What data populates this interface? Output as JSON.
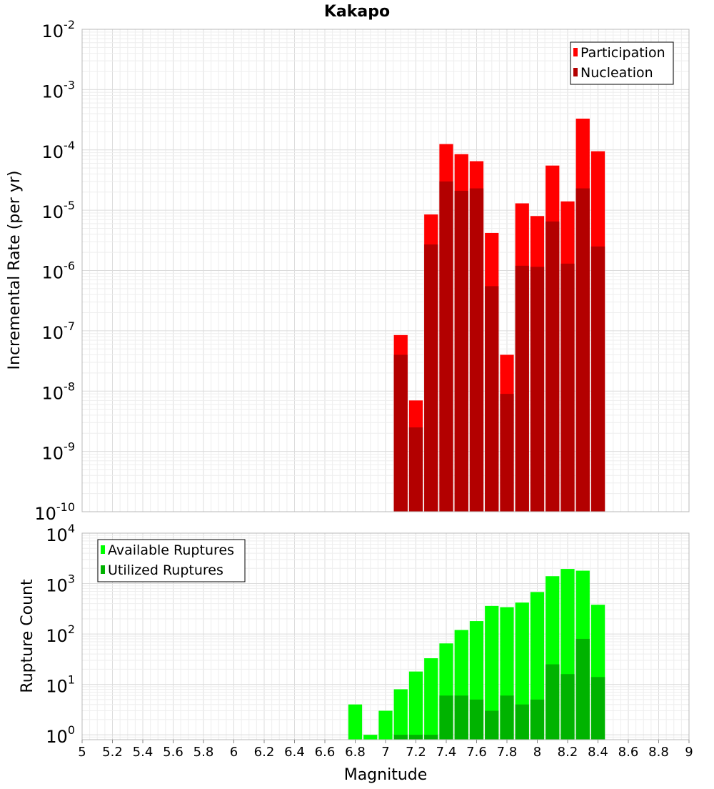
{
  "chart_data": [
    {
      "type": "bar",
      "title": "Kakapo",
      "xlabel": "",
      "ylabel": "Incremental Rate (per yr)",
      "yscale": "log",
      "ylim": [
        1e-10,
        0.01
      ],
      "xlim": [
        5,
        9
      ],
      "y_tick_exponents": [
        "-10",
        "-9",
        "-8",
        "-7",
        "-6",
        "-5",
        "-4",
        "-3",
        "-2"
      ],
      "y_tick_base": "10",
      "grid": true,
      "legend": "top-right",
      "x": [
        7.1,
        7.2,
        7.3,
        7.4,
        7.5,
        7.6,
        7.7,
        7.8,
        7.9,
        8.0,
        8.1,
        8.2,
        8.3,
        8.4
      ],
      "series": [
        {
          "name": "Participation",
          "color": "#ff0000",
          "values": [
            8.5e-08,
            7e-09,
            8.5e-06,
            0.000125,
            8.5e-05,
            6.5e-05,
            4.2e-06,
            4e-08,
            1.3e-05,
            8e-06,
            5.5e-05,
            1.4e-05,
            0.00033,
            9.5e-05
          ]
        },
        {
          "name": "Nucleation",
          "color": "#b30000",
          "values": [
            4e-08,
            2.5e-09,
            2.7e-06,
            3e-05,
            2.1e-05,
            2.3e-05,
            5.5e-07,
            9e-09,
            1.2e-06,
            1.15e-06,
            6.5e-06,
            1.3e-06,
            2.3e-05,
            2.5e-06
          ]
        }
      ]
    },
    {
      "type": "bar",
      "title": "",
      "xlabel": "Magnitude",
      "ylabel": "Rupture Count",
      "yscale": "log",
      "ylim": [
        0.8,
        10000
      ],
      "xlim": [
        5,
        9
      ],
      "x_ticks": [
        "5",
        "5.2",
        "5.4",
        "5.6",
        "5.8",
        "6",
        "6.2",
        "6.4",
        "6.6",
        "6.8",
        "7",
        "7.2",
        "7.4",
        "7.6",
        "7.8",
        "8",
        "8.2",
        "8.4",
        "8.6",
        "8.8",
        "9"
      ],
      "y_tick_exponents": [
        "0",
        "1",
        "2",
        "3",
        "4"
      ],
      "y_tick_base": "10",
      "grid": true,
      "legend": "top-left",
      "x": [
        6.8,
        6.9,
        7.0,
        7.1,
        7.2,
        7.3,
        7.4,
        7.5,
        7.6,
        7.7,
        7.8,
        7.9,
        8.0,
        8.1,
        8.2,
        8.3,
        8.4
      ],
      "series": [
        {
          "name": "Available Ruptures",
          "color": "#00ff00",
          "values": [
            4,
            1,
            3,
            8,
            18,
            33,
            65,
            120,
            180,
            360,
            340,
            420,
            680,
            1400,
            1950,
            1800,
            380
          ]
        },
        {
          "name": "Utilized Ruptures",
          "color": "#00b300",
          "values": [
            0,
            0,
            0,
            1,
            1,
            1,
            6,
            6,
            5,
            3,
            6,
            4,
            5,
            25,
            16,
            80,
            14
          ]
        }
      ]
    }
  ]
}
